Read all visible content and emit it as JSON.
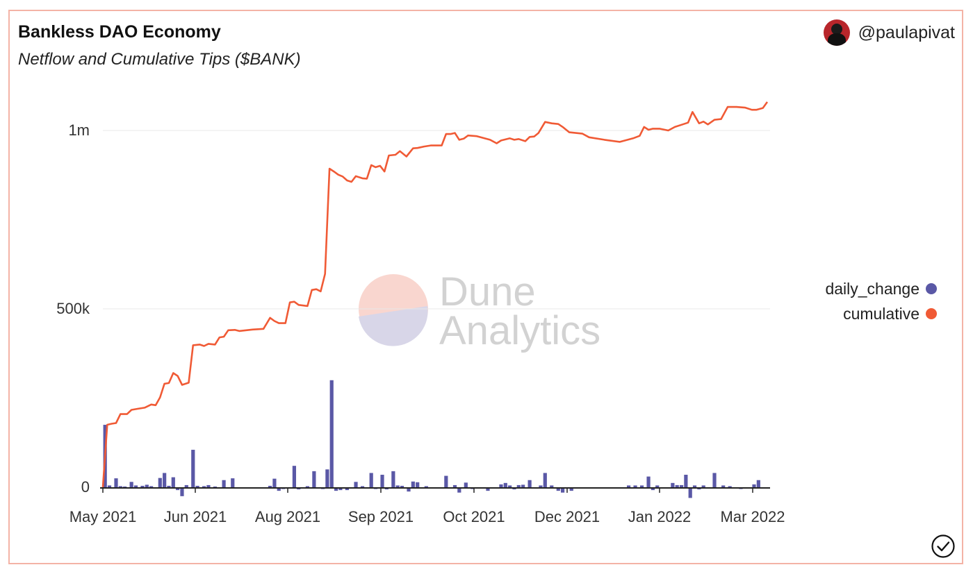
{
  "header": {
    "title": "Bankless DAO Economy",
    "subtitle": "Netflow and Cumulative Tips ($BANK)",
    "author": "@paulapivat"
  },
  "watermark": {
    "line1": "Dune",
    "line2": "Analytics"
  },
  "icons": {
    "avatar": "avatar-icon",
    "check": "check-circle-icon"
  },
  "colors": {
    "daily_change": "#5a58a6",
    "cumulative": "#f05a35",
    "grid": "#e8e8e8",
    "border": "#f4b3a6"
  },
  "chart_data": {
    "type": "bar+line",
    "x_ticks": [
      "May 2021",
      "Jun 2021",
      "Aug 2021",
      "Sep 2021",
      "Oct 2021",
      "Dec 2021",
      "Jan 2022",
      "Mar 2022"
    ],
    "y_ticks": [
      {
        "value": 0,
        "label": "0"
      },
      {
        "value": 500000,
        "label": "500k"
      },
      {
        "value": 1000000,
        "label": "1m"
      }
    ],
    "ylim": [
      -30000,
      1100000
    ],
    "grid": true,
    "legend_position": "right",
    "series": [
      {
        "name": "daily_change",
        "type": "bar",
        "points": [
          [
            "2021-05-01",
            175000
          ],
          [
            "2021-05-03",
            5000
          ],
          [
            "2021-05-06",
            25000
          ],
          [
            "2021-05-08",
            3000
          ],
          [
            "2021-05-10",
            2000
          ],
          [
            "2021-05-13",
            15000
          ],
          [
            "2021-05-15",
            5000
          ],
          [
            "2021-05-18",
            4000
          ],
          [
            "2021-05-20",
            7000
          ],
          [
            "2021-05-22",
            3000
          ],
          [
            "2021-05-26",
            26000
          ],
          [
            "2021-05-28",
            40000
          ],
          [
            "2021-05-30",
            4000
          ],
          [
            "2021-06-01",
            28000
          ],
          [
            "2021-06-03",
            -8000
          ],
          [
            "2021-06-05",
            -25000
          ],
          [
            "2021-06-07",
            6000
          ],
          [
            "2021-06-10",
            105000
          ],
          [
            "2021-06-12",
            4000
          ],
          [
            "2021-06-15",
            3000
          ],
          [
            "2021-06-17",
            6000
          ],
          [
            "2021-06-20",
            2000
          ],
          [
            "2021-06-24",
            20000
          ],
          [
            "2021-06-28",
            25000
          ],
          [
            "2021-07-15",
            4000
          ],
          [
            "2021-07-17",
            24000
          ],
          [
            "2021-07-19",
            -10000
          ],
          [
            "2021-07-21",
            -5000
          ],
          [
            "2021-07-26",
            60000
          ],
          [
            "2021-07-28",
            -6000
          ],
          [
            "2021-08-01",
            3000
          ],
          [
            "2021-08-04",
            45000
          ],
          [
            "2021-08-08",
            -5000
          ],
          [
            "2021-08-10",
            50000
          ],
          [
            "2021-08-12",
            300000
          ],
          [
            "2021-08-14",
            -10000
          ],
          [
            "2021-08-16",
            -8000
          ],
          [
            "2021-08-19",
            -8000
          ],
          [
            "2021-08-23",
            15000
          ],
          [
            "2021-08-26",
            3000
          ],
          [
            "2021-08-30",
            40000
          ],
          [
            "2021-09-01",
            -5000
          ],
          [
            "2021-09-04",
            35000
          ],
          [
            "2021-09-06",
            -6000
          ],
          [
            "2021-09-09",
            45000
          ],
          [
            "2021-09-11",
            5000
          ],
          [
            "2021-09-13",
            4000
          ],
          [
            "2021-09-16",
            -12000
          ],
          [
            "2021-09-18",
            16000
          ],
          [
            "2021-09-20",
            14000
          ],
          [
            "2021-09-24",
            3000
          ],
          [
            "2021-10-03",
            32000
          ],
          [
            "2021-10-07",
            6000
          ],
          [
            "2021-10-09",
            -15000
          ],
          [
            "2021-10-12",
            13000
          ],
          [
            "2021-10-15",
            -5000
          ],
          [
            "2021-10-18",
            -3000
          ],
          [
            "2021-10-22",
            -10000
          ],
          [
            "2021-10-28",
            8000
          ],
          [
            "2021-10-30",
            12000
          ],
          [
            "2021-11-01",
            5000
          ],
          [
            "2021-11-03",
            -6000
          ],
          [
            "2021-11-05",
            6000
          ],
          [
            "2021-11-07",
            7000
          ],
          [
            "2021-11-10",
            20000
          ],
          [
            "2021-11-13",
            -4000
          ],
          [
            "2021-11-15",
            5000
          ],
          [
            "2021-11-17",
            40000
          ],
          [
            "2021-11-20",
            5000
          ],
          [
            "2021-11-23",
            -10000
          ],
          [
            "2021-11-25",
            -15000
          ],
          [
            "2021-11-29",
            -10000
          ],
          [
            "2021-12-25",
            5000
          ],
          [
            "2021-12-28",
            5000
          ],
          [
            "2021-12-31",
            5000
          ],
          [
            "2022-01-03",
            30000
          ],
          [
            "2022-01-05",
            -8000
          ],
          [
            "2022-01-07",
            5000
          ],
          [
            "2022-01-14",
            12000
          ],
          [
            "2022-01-16",
            6000
          ],
          [
            "2022-01-18",
            6000
          ],
          [
            "2022-01-20",
            35000
          ],
          [
            "2022-01-22",
            -30000
          ],
          [
            "2022-01-24",
            5000
          ],
          [
            "2022-01-26",
            -6000
          ],
          [
            "2022-01-28",
            5000
          ],
          [
            "2022-02-02",
            40000
          ],
          [
            "2022-02-06",
            5000
          ],
          [
            "2022-02-09",
            3000
          ],
          [
            "2022-02-14",
            -5000
          ],
          [
            "2022-02-20",
            8000
          ],
          [
            "2022-02-22",
            20000
          ]
        ]
      },
      {
        "name": "cumulative",
        "type": "line",
        "points": [
          [
            "2021-04-30",
            0
          ],
          [
            "2021-05-02",
            175000
          ],
          [
            "2021-05-04",
            178000
          ],
          [
            "2021-05-06",
            180000
          ],
          [
            "2021-05-08",
            205000
          ],
          [
            "2021-05-11",
            205000
          ],
          [
            "2021-05-13",
            217000
          ],
          [
            "2021-05-16",
            220000
          ],
          [
            "2021-05-19",
            223000
          ],
          [
            "2021-05-22",
            232000
          ],
          [
            "2021-05-24",
            230000
          ],
          [
            "2021-05-26",
            252000
          ],
          [
            "2021-05-28",
            290000
          ],
          [
            "2021-05-30",
            292000
          ],
          [
            "2021-06-01",
            320000
          ],
          [
            "2021-06-03",
            312000
          ],
          [
            "2021-06-05",
            287000
          ],
          [
            "2021-06-08",
            293000
          ],
          [
            "2021-06-10",
            398000
          ],
          [
            "2021-06-13",
            400000
          ],
          [
            "2021-06-15",
            396000
          ],
          [
            "2021-06-17",
            402000
          ],
          [
            "2021-06-20",
            400000
          ],
          [
            "2021-06-22",
            420000
          ],
          [
            "2021-06-24",
            422000
          ],
          [
            "2021-06-26",
            440000
          ],
          [
            "2021-06-29",
            441000
          ],
          [
            "2021-07-01",
            438000
          ],
          [
            "2021-07-07",
            442000
          ],
          [
            "2021-07-12",
            444000
          ],
          [
            "2021-07-15",
            475000
          ],
          [
            "2021-07-17",
            466000
          ],
          [
            "2021-07-19",
            460000
          ],
          [
            "2021-07-22",
            460000
          ],
          [
            "2021-07-24",
            518000
          ],
          [
            "2021-07-26",
            520000
          ],
          [
            "2021-07-28",
            511000
          ],
          [
            "2021-08-01",
            508000
          ],
          [
            "2021-08-03",
            553000
          ],
          [
            "2021-08-05",
            555000
          ],
          [
            "2021-08-07",
            549000
          ],
          [
            "2021-08-09",
            598000
          ],
          [
            "2021-08-11",
            893000
          ],
          [
            "2021-08-13",
            885000
          ],
          [
            "2021-08-15",
            876000
          ],
          [
            "2021-08-17",
            871000
          ],
          [
            "2021-08-19",
            860000
          ],
          [
            "2021-08-21",
            856000
          ],
          [
            "2021-08-23",
            872000
          ],
          [
            "2021-08-26",
            866000
          ],
          [
            "2021-08-28",
            865000
          ],
          [
            "2021-08-30",
            903000
          ],
          [
            "2021-09-01",
            897000
          ],
          [
            "2021-09-03",
            901000
          ],
          [
            "2021-09-05",
            885000
          ],
          [
            "2021-09-07",
            930000
          ],
          [
            "2021-09-10",
            932000
          ],
          [
            "2021-09-12",
            942000
          ],
          [
            "2021-09-15",
            927000
          ],
          [
            "2021-09-18",
            950000
          ],
          [
            "2021-09-20",
            951000
          ],
          [
            "2021-09-23",
            955000
          ],
          [
            "2021-09-26",
            958000
          ],
          [
            "2021-10-01",
            958000
          ],
          [
            "2021-10-03",
            990000
          ],
          [
            "2021-10-05",
            990000
          ],
          [
            "2021-10-07",
            993000
          ],
          [
            "2021-10-09",
            974000
          ],
          [
            "2021-10-11",
            977000
          ],
          [
            "2021-10-13",
            986000
          ],
          [
            "2021-10-17",
            984000
          ],
          [
            "2021-10-23",
            974000
          ],
          [
            "2021-10-26",
            964000
          ],
          [
            "2021-10-28",
            972000
          ],
          [
            "2021-11-01",
            978000
          ],
          [
            "2021-11-03",
            974000
          ],
          [
            "2021-11-05",
            976000
          ],
          [
            "2021-11-08",
            970000
          ],
          [
            "2021-11-10",
            982000
          ],
          [
            "2021-11-12",
            983000
          ],
          [
            "2021-11-14",
            993000
          ],
          [
            "2021-11-17",
            1024000
          ],
          [
            "2021-11-20",
            1020000
          ],
          [
            "2021-11-23",
            1018000
          ],
          [
            "2021-11-25",
            1010000
          ],
          [
            "2021-11-28",
            995000
          ],
          [
            "2021-12-04",
            991000
          ],
          [
            "2021-12-07",
            981000
          ],
          [
            "2021-12-14",
            974000
          ],
          [
            "2021-12-21",
            968000
          ],
          [
            "2021-12-27",
            978000
          ],
          [
            "2021-12-30",
            985000
          ],
          [
            "2022-01-01",
            1010000
          ],
          [
            "2022-01-03",
            1002000
          ],
          [
            "2022-01-05",
            1005000
          ],
          [
            "2022-01-08",
            1005000
          ],
          [
            "2022-01-12",
            1000000
          ],
          [
            "2022-01-15",
            1010000
          ],
          [
            "2022-01-18",
            1016000
          ],
          [
            "2022-01-21",
            1022000
          ],
          [
            "2022-01-23",
            1052000
          ],
          [
            "2022-01-26",
            1020000
          ],
          [
            "2022-01-28",
            1025000
          ],
          [
            "2022-01-30",
            1017000
          ],
          [
            "2022-02-02",
            1030000
          ],
          [
            "2022-02-05",
            1032000
          ],
          [
            "2022-02-08",
            1066000
          ],
          [
            "2022-02-12",
            1066000
          ],
          [
            "2022-02-16",
            1064000
          ],
          [
            "2022-02-19",
            1058000
          ],
          [
            "2022-02-21",
            1058000
          ],
          [
            "2022-02-24",
            1063000
          ],
          [
            "2022-02-26",
            1080000
          ]
        ]
      }
    ]
  }
}
